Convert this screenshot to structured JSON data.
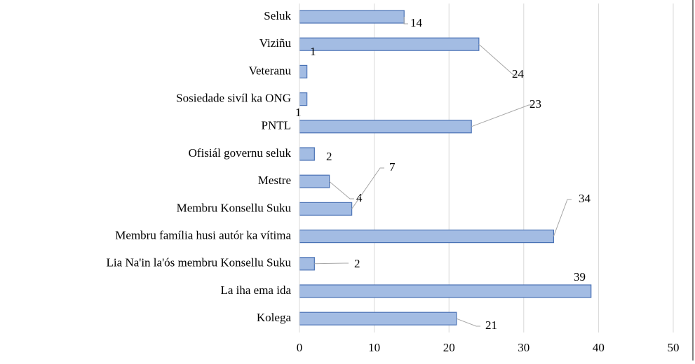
{
  "chart_data": {
    "type": "bar",
    "orientation": "horizontal",
    "categories": [
      "Seluk",
      "Viziñu",
      "Veteranu",
      "Sosiedade sivíl ka ONG",
      "PNTL",
      "Ofisiál governu seluk",
      "Mestre",
      "Membru Konsellu Suku",
      "Membru família husi autór ka vítima",
      "Lia Na'in la'ós membru Konsellu Suku",
      "La iha ema ida",
      "Kolega"
    ],
    "values": [
      14,
      24,
      1,
      1,
      23,
      2,
      4,
      7,
      34,
      2,
      39,
      21
    ],
    "color": "#a3bce3",
    "xlim": [
      0,
      50
    ],
    "xticks": [
      0,
      10,
      20,
      30,
      40,
      50
    ],
    "grid": true
  }
}
